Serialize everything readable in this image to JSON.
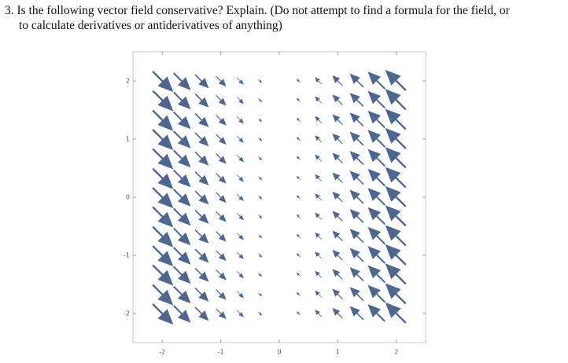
{
  "question": {
    "lines": [
      "3. Is the following vector field conservative? Explain. (Do not attempt to find a formula for the field, or",
      "to calculate derivatives or antiderivatives of anything)"
    ]
  },
  "chart_data": {
    "type": "vector_field",
    "color": "#4f6790",
    "xlim": [
      -2.5,
      2.5
    ],
    "ylim": [
      -2.5,
      2.5
    ],
    "xticks": [
      -2,
      -1,
      0,
      1,
      2
    ],
    "yticks": [
      -2,
      -1,
      0,
      1,
      2
    ],
    "x": [
      -2,
      -1.67,
      -1.33,
      -1,
      -0.67,
      -0.33,
      0,
      0.33,
      0.67,
      1,
      1.33,
      1.67,
      2
    ],
    "y": [
      2,
      1.67,
      1.33,
      1,
      0.67,
      0.33,
      0,
      -0.33,
      -0.67,
      -1,
      -1.33,
      -1.67,
      -2
    ],
    "u": [
      2,
      1.67,
      1.33,
      1,
      0.67,
      0.33,
      0,
      -0.33,
      -0.67,
      -1,
      -1.33,
      -1.67,
      -2
    ],
    "v": [
      -2,
      -1.67,
      -1.33,
      -1,
      -0.67,
      -0.33,
      0,
      0.33,
      0.67,
      1,
      1.33,
      1.67,
      2
    ]
  }
}
